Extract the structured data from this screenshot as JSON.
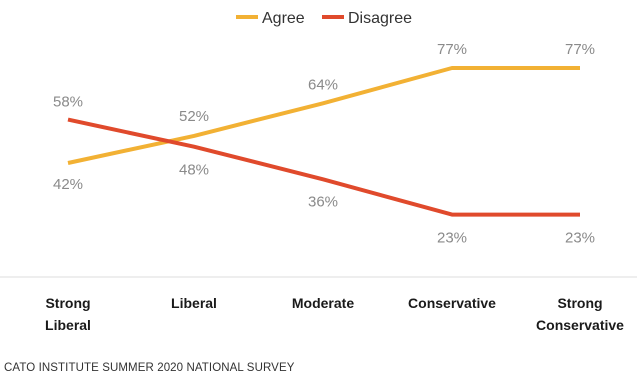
{
  "chart_data": {
    "type": "line",
    "categories": [
      "Strong Liberal",
      "Liberal",
      "Moderate",
      "Conservative",
      "Strong Conservative"
    ],
    "series": [
      {
        "name": "Agree",
        "color": "#F2B134",
        "values": [
          42,
          52,
          64,
          77,
          77
        ],
        "labels": [
          "42%",
          "52%",
          "64%",
          "77%",
          "77%"
        ]
      },
      {
        "name": "Disagree",
        "color": "#E04A2C",
        "values": [
          58,
          48,
          36,
          23,
          23
        ],
        "labels": [
          "58%",
          "48%",
          "36%",
          "23%",
          "23%"
        ]
      }
    ],
    "ylim": [
      0,
      100
    ],
    "grid": false,
    "legend_placement": "top-center",
    "title": "",
    "xlabel": "",
    "ylabel": ""
  },
  "source_note": "CATO INSTITUTE SUMMER 2020 NATIONAL SURVEY",
  "colors": {
    "axis_line": "#dddddd",
    "label_text": "#8a8a8a"
  }
}
